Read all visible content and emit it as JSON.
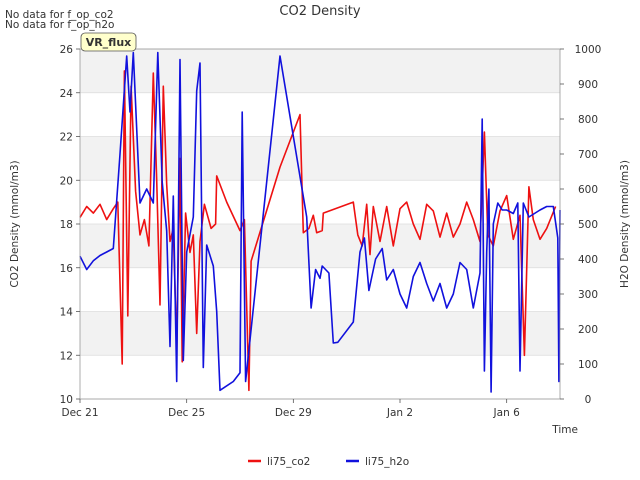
{
  "notes": [
    "No data for f_op_co2",
    "No data for f_op_h2o"
  ],
  "badge": "VR_flux",
  "chart_data": {
    "type": "line",
    "title": "CO2 Density",
    "xlabel": "Time",
    "ylabel_left": "CO2 Density (mmol/m3)",
    "ylabel_right": "H2O Density (mmol/m3)",
    "x_ticks": [
      {
        "date": "2023-12-21",
        "label": "Dec 21"
      },
      {
        "date": "2023-12-25",
        "label": "Dec 25"
      },
      {
        "date": "2023-12-29",
        "label": "Dec 29"
      },
      {
        "date": "2024-01-02",
        "label": "Jan 2"
      },
      {
        "date": "2024-01-06",
        "label": "Jan 6"
      }
    ],
    "xlim": [
      "2023-12-21",
      "2024-01-08"
    ],
    "ylim_left": [
      10,
      26
    ],
    "yticks_left": [
      10,
      12,
      14,
      16,
      18,
      20,
      22,
      24,
      26
    ],
    "ylim_right": [
      0,
      1000
    ],
    "yticks_right": [
      0,
      100,
      200,
      300,
      400,
      500,
      600,
      700,
      800,
      900,
      1000
    ],
    "grid": "horizontal",
    "legend_position": "bottom-center",
    "series": [
      {
        "name": "li75_co2",
        "axis": "left",
        "color": "#ee1111",
        "points": [
          [
            "2023-12-21T00:00",
            18.3
          ],
          [
            "2023-12-21T06:00",
            18.8
          ],
          [
            "2023-12-21T12:00",
            18.5
          ],
          [
            "2023-12-21T18:00",
            18.9
          ],
          [
            "2023-12-22T00:00",
            18.2
          ],
          [
            "2023-12-22T06:00",
            18.7
          ],
          [
            "2023-12-22T10:00",
            19.0
          ],
          [
            "2023-12-22T14:00",
            11.6
          ],
          [
            "2023-12-22T16:00",
            25.0
          ],
          [
            "2023-12-22T19:00",
            13.8
          ],
          [
            "2023-12-22T22:00",
            24.3
          ],
          [
            "2023-12-23T02:00",
            19.5
          ],
          [
            "2023-12-23T06:00",
            17.5
          ],
          [
            "2023-12-23T10:00",
            18.2
          ],
          [
            "2023-12-23T14:00",
            17.0
          ],
          [
            "2023-12-23T18:00",
            24.9
          ],
          [
            "2023-12-23T21:00",
            20.0
          ],
          [
            "2023-12-24T00:00",
            14.3
          ],
          [
            "2023-12-24T03:00",
            24.3
          ],
          [
            "2023-12-24T06:00",
            19.8
          ],
          [
            "2023-12-24T09:00",
            17.2
          ],
          [
            "2023-12-24T12:00",
            17.8
          ],
          [
            "2023-12-24T15:00",
            12.3
          ],
          [
            "2023-12-24T18:00",
            21.0
          ],
          [
            "2023-12-24T20:00",
            11.7
          ],
          [
            "2023-12-24T23:00",
            18.5
          ],
          [
            "2023-12-25T03:00",
            16.7
          ],
          [
            "2023-12-25T06:00",
            17.5
          ],
          [
            "2023-12-25T09:00",
            13.0
          ],
          [
            "2023-12-25T12:00",
            17.2
          ],
          [
            "2023-12-25T16:00",
            18.9
          ],
          [
            "2023-12-25T22:00",
            17.8
          ],
          [
            "2023-12-26T02:00",
            18.0
          ],
          [
            "2023-12-26T03:00",
            20.2
          ],
          [
            "2023-12-26T12:00",
            19.0
          ],
          [
            "2023-12-27T00:00",
            17.7
          ],
          [
            "2023-12-27T04:00",
            18.2
          ],
          [
            "2023-12-27T08:00",
            10.4
          ],
          [
            "2023-12-27T10:00",
            16.3
          ],
          [
            "2023-12-28T12:00",
            20.6
          ],
          [
            "2023-12-29T06:00",
            23.0
          ],
          [
            "2023-12-29T09:00",
            17.6
          ],
          [
            "2023-12-29T14:00",
            17.8
          ],
          [
            "2023-12-29T18:00",
            18.4
          ],
          [
            "2023-12-29T21:00",
            17.6
          ],
          [
            "2023-12-30T02:00",
            17.7
          ],
          [
            "2023-12-30T03:00",
            18.5
          ],
          [
            "2023-12-31T06:00",
            19.0
          ],
          [
            "2023-12-31T10:00",
            17.5
          ],
          [
            "2023-12-31T14:00",
            17.0
          ],
          [
            "2023-12-31T18:00",
            18.9
          ],
          [
            "2023-12-31T21:00",
            16.6
          ],
          [
            "2024-01-01T00:00",
            18.8
          ],
          [
            "2024-01-01T06:00",
            17.2
          ],
          [
            "2024-01-01T12:00",
            18.8
          ],
          [
            "2024-01-01T18:00",
            17.0
          ],
          [
            "2024-01-02T00:00",
            18.7
          ],
          [
            "2024-01-02T06:00",
            19.0
          ],
          [
            "2024-01-02T12:00",
            18.0
          ],
          [
            "2024-01-02T18:00",
            17.3
          ],
          [
            "2024-01-03T00:00",
            18.9
          ],
          [
            "2024-01-03T06:00",
            18.6
          ],
          [
            "2024-01-03T12:00",
            17.4
          ],
          [
            "2024-01-03T18:00",
            18.5
          ],
          [
            "2024-01-04T00:00",
            17.4
          ],
          [
            "2024-01-04T06:00",
            18.0
          ],
          [
            "2024-01-04T12:00",
            19.0
          ],
          [
            "2024-01-04T18:00",
            18.2
          ],
          [
            "2024-01-05T00:00",
            17.2
          ],
          [
            "2024-01-05T04:00",
            22.2
          ],
          [
            "2024-01-05T07:00",
            17.5
          ],
          [
            "2024-01-05T12:00",
            17.0
          ],
          [
            "2024-01-05T18:00",
            18.6
          ],
          [
            "2024-01-06T00:00",
            19.3
          ],
          [
            "2024-01-06T06:00",
            17.3
          ],
          [
            "2024-01-06T12:00",
            18.4
          ],
          [
            "2024-01-06T16:00",
            12.0
          ],
          [
            "2024-01-06T20:00",
            19.7
          ],
          [
            "2024-01-07T00:00",
            18.2
          ],
          [
            "2024-01-07T06:00",
            17.3
          ],
          [
            "2024-01-07T12:00",
            17.8
          ],
          [
            "2024-01-07T20:00",
            18.8
          ]
        ]
      },
      {
        "name": "li75_h2o",
        "axis": "right",
        "color": "#1111dd",
        "points": [
          [
            "2023-12-21T00:00",
            408
          ],
          [
            "2023-12-21T06:00",
            370
          ],
          [
            "2023-12-21T12:00",
            395
          ],
          [
            "2023-12-21T18:00",
            410
          ],
          [
            "2023-12-22T00:00",
            420
          ],
          [
            "2023-12-22T06:00",
            430
          ],
          [
            "2023-12-22T12:00",
            700
          ],
          [
            "2023-12-22T18:00",
            980
          ],
          [
            "2023-12-22T21:00",
            820
          ],
          [
            "2023-12-23T00:00",
            990
          ],
          [
            "2023-12-23T06:00",
            560
          ],
          [
            "2023-12-23T12:00",
            600
          ],
          [
            "2023-12-23T18:00",
            560
          ],
          [
            "2023-12-23T22:00",
            990
          ],
          [
            "2023-12-24T02:00",
            620
          ],
          [
            "2023-12-24T06:00",
            480
          ],
          [
            "2023-12-24T09:00",
            150
          ],
          [
            "2023-12-24T12:00",
            580
          ],
          [
            "2023-12-24T15:00",
            50
          ],
          [
            "2023-12-24T18:00",
            970
          ],
          [
            "2023-12-24T21:00",
            110
          ],
          [
            "2023-12-25T00:00",
            420
          ],
          [
            "2023-12-25T06:00",
            520
          ],
          [
            "2023-12-25T09:00",
            880
          ],
          [
            "2023-12-25T12:00",
            960
          ],
          [
            "2023-12-25T15:00",
            90
          ],
          [
            "2023-12-25T18:00",
            440
          ],
          [
            "2023-12-26T00:00",
            380
          ],
          [
            "2023-12-26T03:00",
            250
          ],
          [
            "2023-12-26T06:00",
            25
          ],
          [
            "2023-12-26T18:00",
            50
          ],
          [
            "2023-12-27T00:00",
            75
          ],
          [
            "2023-12-27T02:00",
            820
          ],
          [
            "2023-12-27T05:00",
            50
          ],
          [
            "2023-12-28T12:00",
            980
          ],
          [
            "2023-12-29T12:00",
            520
          ],
          [
            "2023-12-29T16:00",
            260
          ],
          [
            "2023-12-29T20:00",
            370
          ],
          [
            "2023-12-30T00:00",
            345
          ],
          [
            "2023-12-30T02:00",
            380
          ],
          [
            "2023-12-30T08:00",
            360
          ],
          [
            "2023-12-30T12:00",
            160
          ],
          [
            "2023-12-30T16:00",
            162
          ],
          [
            "2023-12-31T06:00",
            220
          ],
          [
            "2023-12-31T12:00",
            420
          ],
          [
            "2023-12-31T16:00",
            460
          ],
          [
            "2023-12-31T20:00",
            310
          ],
          [
            "2024-01-01T02:00",
            400
          ],
          [
            "2024-01-01T08:00",
            430
          ],
          [
            "2024-01-01T12:00",
            340
          ],
          [
            "2024-01-01T18:00",
            370
          ],
          [
            "2024-01-02T00:00",
            300
          ],
          [
            "2024-01-02T06:00",
            260
          ],
          [
            "2024-01-02T12:00",
            350
          ],
          [
            "2024-01-02T18:00",
            390
          ],
          [
            "2024-01-03T00:00",
            330
          ],
          [
            "2024-01-03T06:00",
            280
          ],
          [
            "2024-01-03T12:00",
            330
          ],
          [
            "2024-01-03T18:00",
            260
          ],
          [
            "2024-01-04T00:00",
            300
          ],
          [
            "2024-01-04T06:00",
            390
          ],
          [
            "2024-01-04T12:00",
            370
          ],
          [
            "2024-01-04T18:00",
            260
          ],
          [
            "2024-01-05T00:00",
            360
          ],
          [
            "2024-01-05T02:00",
            800
          ],
          [
            "2024-01-05T04:00",
            80
          ],
          [
            "2024-01-05T06:00",
            420
          ],
          [
            "2024-01-05T08:00",
            600
          ],
          [
            "2024-01-05T10:00",
            20
          ],
          [
            "2024-01-05T12:00",
            500
          ],
          [
            "2024-01-05T16:00",
            560
          ],
          [
            "2024-01-05T20:00",
            540
          ],
          [
            "2024-01-06T00:00",
            540
          ],
          [
            "2024-01-06T06:00",
            530
          ],
          [
            "2024-01-06T10:00",
            560
          ],
          [
            "2024-01-06T12:00",
            80
          ],
          [
            "2024-01-06T15:00",
            560
          ],
          [
            "2024-01-06T20:00",
            520
          ],
          [
            "2024-01-07T06:00",
            540
          ],
          [
            "2024-01-07T12:00",
            550
          ],
          [
            "2024-01-07T18:00",
            550
          ],
          [
            "2024-01-07T22:00",
            460
          ],
          [
            "2024-01-07T23:00",
            50
          ],
          [
            "2024-01-08T00:00",
            540
          ]
        ]
      }
    ]
  }
}
